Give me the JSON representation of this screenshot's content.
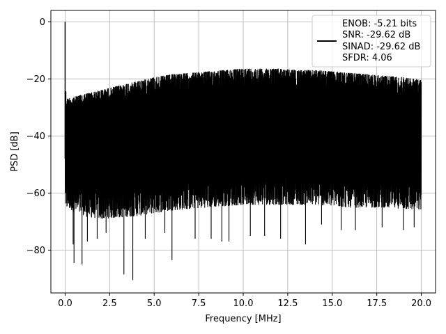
{
  "chart_data": {
    "type": "line",
    "xlabel": "Frequency [MHz]",
    "ylabel": "PSD [dB]",
    "xlim": [
      -0.8,
      20.8
    ],
    "ylim": [
      -95,
      4
    ],
    "xticks": [
      0.0,
      2.5,
      5.0,
      7.5,
      10.0,
      12.5,
      15.0,
      17.5,
      20.0
    ],
    "xtick_labels": [
      "0.0",
      "2.5",
      "5.0",
      "7.5",
      "10.0",
      "12.5",
      "15.0",
      "17.5",
      "20.0"
    ],
    "yticks": [
      0,
      -20,
      -40,
      -60,
      -80
    ],
    "ytick_labels": [
      "0",
      "−20",
      "−40",
      "−60",
      "−80"
    ],
    "grid": true,
    "legend_position": "top-right",
    "series": [
      {
        "label_lines": [
          "ENOB: -5.21 bits",
          "SNR: -29.62 dB",
          "SINAD: -29.62 dB",
          "SFDR: 4.06"
        ],
        "color": "#000000",
        "peak": {
          "x": 0.0,
          "y": 0
        },
        "upper_envelope": {
          "x": [
            0.0,
            0.1,
            1.0,
            2.0,
            3.0,
            4.0,
            5.0,
            6.0,
            7.0,
            8.0,
            9.0,
            10.0,
            11.0,
            12.0,
            13.0,
            14.0,
            15.0,
            16.0,
            17.0,
            18.0,
            19.0,
            20.0
          ],
          "y": [
            -22,
            -27,
            -25.5,
            -24,
            -22.5,
            -21,
            -19.5,
            -18.5,
            -18,
            -17.5,
            -17,
            -16.5,
            -16.5,
            -16.5,
            -17,
            -17,
            -17.5,
            -18,
            -18.5,
            -19,
            -19.5,
            -20.5
          ]
        },
        "lower_envelope": {
          "x": [
            0.0,
            1.0,
            2.0,
            4.0,
            6.0,
            8.0,
            10.0,
            12.0,
            14.0,
            16.0,
            18.0,
            20.0
          ],
          "y": [
            -63,
            -66,
            -67,
            -66,
            -64,
            -63,
            -62,
            -62,
            -62,
            -63,
            -63,
            -64
          ]
        },
        "deep_nulls": [
          {
            "x": 0.45,
            "y": -78
          },
          {
            "x": 0.95,
            "y": -85
          },
          {
            "x": 0.5,
            "y": -84.5
          },
          {
            "x": 1.25,
            "y": -77
          },
          {
            "x": 1.8,
            "y": -76
          },
          {
            "x": 2.3,
            "y": -74
          },
          {
            "x": 3.3,
            "y": -88.5
          },
          {
            "x": 3.8,
            "y": -90.5
          },
          {
            "x": 4.5,
            "y": -76
          },
          {
            "x": 5.6,
            "y": -74
          },
          {
            "x": 6.0,
            "y": -83.5
          },
          {
            "x": 7.3,
            "y": -76
          },
          {
            "x": 8.2,
            "y": -76
          },
          {
            "x": 8.8,
            "y": -77
          },
          {
            "x": 9.2,
            "y": -77
          },
          {
            "x": 10.4,
            "y": -75
          },
          {
            "x": 11.2,
            "y": -75
          },
          {
            "x": 12.1,
            "y": -76
          },
          {
            "x": 13.5,
            "y": -78
          },
          {
            "x": 14.4,
            "y": -71
          },
          {
            "x": 15.5,
            "y": -73
          },
          {
            "x": 16.3,
            "y": -73
          },
          {
            "x": 17.8,
            "y": -72
          },
          {
            "x": 19.0,
            "y": -73
          },
          {
            "x": 19.6,
            "y": -72
          }
        ]
      }
    ]
  }
}
